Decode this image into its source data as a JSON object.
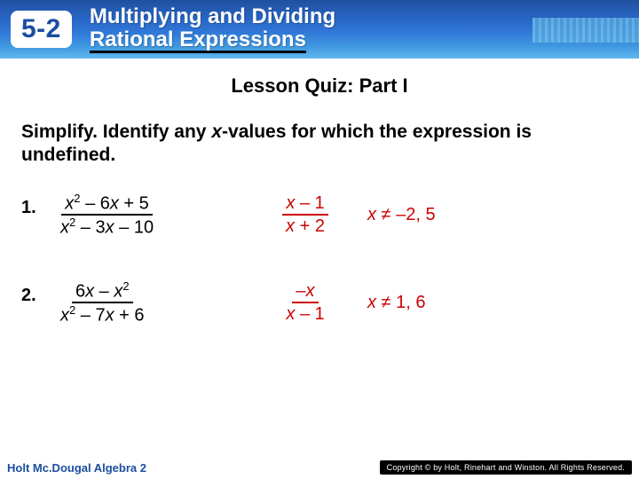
{
  "header": {
    "badge": "5-2",
    "title_line1": "Multiplying and Dividing",
    "title_line2": "Rational Expressions",
    "bg_gradient_top": "#2050a0",
    "bg_gradient_bottom": "#60b8f0"
  },
  "quiz": {
    "title": "Lesson Quiz: Part I",
    "instructions_pre": "Simplify. Identify any ",
    "instructions_var": "x",
    "instructions_post": "-values for which the expression is undefined."
  },
  "problems": [
    {
      "num": "1.",
      "expr_top_html": "<span class='ital'>x</span><sup>2</sup> – 6<span class='ital'>x</span> + 5",
      "expr_bot_html": "<span class='ital'>x</span><sup>2</sup> – 3<span class='ital'>x</span> – 10",
      "ans_top_html": "<span class='ital'>x</span> – 1",
      "ans_bot_html": "<span class='ital'>x</span> + 2",
      "cond_html": "<span class='ital'>x</span> ≠ –2, 5"
    },
    {
      "num": "2.",
      "expr_top_html": "6<span class='ital'>x</span> – <span class='ital'>x</span><sup>2</sup>",
      "expr_bot_html": "<span class='ital'>x</span><sup>2</sup> – 7<span class='ital'>x</span> + 6",
      "ans_top_html": "–<span class='ital'>x</span>",
      "ans_bot_html": "<span class='ital'>x</span> – 1",
      "cond_html": "<span class='ital'>x</span> ≠ 1, 6"
    }
  ],
  "footer": {
    "book": "Holt Mc.Dougal Algebra 2",
    "copyright": "Copyright © by Holt, Rinehart and Winston. All Rights Reserved."
  },
  "colors": {
    "answer": "#cc0000",
    "brand": "#1b4ea0",
    "black": "#000000",
    "white": "#ffffff"
  }
}
